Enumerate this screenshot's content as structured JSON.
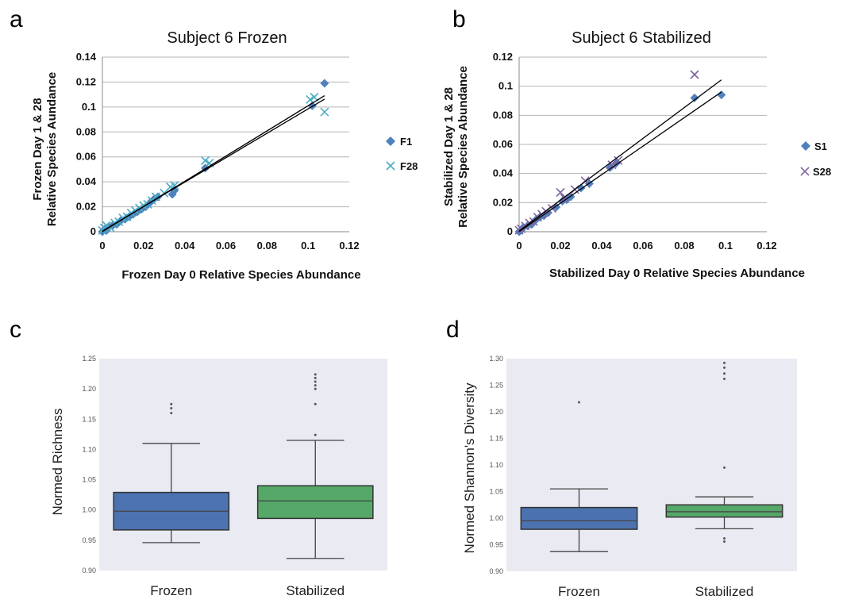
{
  "panels": [
    {
      "letter": "a",
      "title": "Subject 6 Frozen",
      "xlabel": "Frozen Day 0 Relative Species Abundance",
      "ylabel_line1": "Frozen Day 1 & 28",
      "ylabel_line2": "Relative Species Aundance"
    },
    {
      "letter": "b",
      "title": "Subject 6 Stabilized",
      "xlabel": "Stabilized Day 0 Relative Species Abundance",
      "ylabel_line1": "Stabilized Day 1 & 28",
      "ylabel_line2": "Relative Species Abundance"
    },
    {
      "letter": "c",
      "ylabel": "Normed Richness"
    },
    {
      "letter": "d",
      "ylabel": "Normed Shannon's Diversity"
    }
  ],
  "colors": {
    "frozen_scatter": "#4f81bd",
    "frozen_cross": "#4bacc6",
    "stabilized_scatter": "#4f81bd",
    "stabilized_cross": "#8064a2",
    "box_frozen": "#4c72b0",
    "box_stabilized": "#55a868",
    "box_bg": "#eaeaf2"
  },
  "chart_data": [
    {
      "type": "scatter",
      "title": "Subject 6 Frozen",
      "xlabel": "Frozen Day 0 Relative Species Abundance",
      "ylabel": "Frozen Day 1 & 28 Relative Species Aundance",
      "xlim": [
        0,
        0.12
      ],
      "ylim": [
        0,
        0.14
      ],
      "xticks": [
        "0",
        "0.02",
        "0.04",
        "0.06",
        "0.08",
        "0.1",
        "0.12"
      ],
      "yticks": [
        "0",
        "0.02",
        "0.04",
        "0.06",
        "0.08",
        "0.1",
        "0.12",
        "0.14"
      ],
      "grid": "horizontal",
      "legend": "right",
      "series": [
        {
          "name": "F1",
          "marker": "diamond",
          "points": [
            [
              0,
              0
            ],
            [
              0.001,
              0.002
            ],
            [
              0.002,
              0.001
            ],
            [
              0.003,
              0.004
            ],
            [
              0.005,
              0.005
            ],
            [
              0.007,
              0.006
            ],
            [
              0.009,
              0.009
            ],
            [
              0.011,
              0.01
            ],
            [
              0.013,
              0.012
            ],
            [
              0.015,
              0.014
            ],
            [
              0.017,
              0.016
            ],
            [
              0.019,
              0.018
            ],
            [
              0.021,
              0.02
            ],
            [
              0.023,
              0.023
            ],
            [
              0.025,
              0.026
            ],
            [
              0.027,
              0.028
            ],
            [
              0.034,
              0.03
            ],
            [
              0.035,
              0.033
            ],
            [
              0.05,
              0.051
            ],
            [
              0.102,
              0.101
            ],
            [
              0.108,
              0.119
            ]
          ]
        },
        {
          "name": "F28",
          "marker": "cross",
          "points": [
            [
              0,
              0.001
            ],
            [
              0.001,
              0.003
            ],
            [
              0.002,
              0.005
            ],
            [
              0.004,
              0.003
            ],
            [
              0.006,
              0.007
            ],
            [
              0.008,
              0.008
            ],
            [
              0.01,
              0.011
            ],
            [
              0.012,
              0.012
            ],
            [
              0.014,
              0.015
            ],
            [
              0.016,
              0.017
            ],
            [
              0.018,
              0.019
            ],
            [
              0.02,
              0.021
            ],
            [
              0.022,
              0.022
            ],
            [
              0.024,
              0.025
            ],
            [
              0.026,
              0.028
            ],
            [
              0.03,
              0.031
            ],
            [
              0.033,
              0.036
            ],
            [
              0.035,
              0.037
            ],
            [
              0.05,
              0.057
            ],
            [
              0.052,
              0.055
            ],
            [
              0.101,
              0.106
            ],
            [
              0.103,
              0.108
            ],
            [
              0.108,
              0.096
            ]
          ]
        }
      ],
      "trendlines": [
        {
          "name": "F1",
          "slope": 1.01,
          "intercept": 0.0
        },
        {
          "name": "F28",
          "slope": 0.98,
          "intercept": 0.0005
        }
      ]
    },
    {
      "type": "scatter",
      "title": "Subject 6 Stabilized",
      "xlabel": "Stabilized Day 0 Relative Species Abundance",
      "ylabel": "Stabilized Day 1 & 28 Relative Species Abundance",
      "xlim": [
        0,
        0.12
      ],
      "ylim": [
        0,
        0.12
      ],
      "xticks": [
        "0",
        "0.02",
        "0.04",
        "0.06",
        "0.08",
        "0.1",
        "0.12"
      ],
      "yticks": [
        "0",
        "0.02",
        "0.04",
        "0.06",
        "0.08",
        "0.1",
        "0.12"
      ],
      "grid": "horizontal",
      "legend": "right",
      "series": [
        {
          "name": "S1",
          "marker": "diamond",
          "points": [
            [
              0,
              0
            ],
            [
              0.001,
              0.001
            ],
            [
              0.002,
              0.003
            ],
            [
              0.004,
              0.004
            ],
            [
              0.006,
              0.005
            ],
            [
              0.008,
              0.008
            ],
            [
              0.01,
              0.01
            ],
            [
              0.012,
              0.011
            ],
            [
              0.014,
              0.013
            ],
            [
              0.018,
              0.017
            ],
            [
              0.021,
              0.021
            ],
            [
              0.023,
              0.022
            ],
            [
              0.025,
              0.024
            ],
            [
              0.03,
              0.03
            ],
            [
              0.034,
              0.033
            ],
            [
              0.044,
              0.044
            ],
            [
              0.047,
              0.047
            ],
            [
              0.085,
              0.092
            ],
            [
              0.098,
              0.094
            ]
          ]
        },
        {
          "name": "S28",
          "marker": "cross",
          "points": [
            [
              0,
              0.001
            ],
            [
              0.001,
              0.002
            ],
            [
              0.003,
              0.004
            ],
            [
              0.005,
              0.006
            ],
            [
              0.007,
              0.007
            ],
            [
              0.009,
              0.01
            ],
            [
              0.011,
              0.012
            ],
            [
              0.013,
              0.014
            ],
            [
              0.016,
              0.016
            ],
            [
              0.02,
              0.027
            ],
            [
              0.022,
              0.023
            ],
            [
              0.027,
              0.029
            ],
            [
              0.032,
              0.035
            ],
            [
              0.045,
              0.046
            ],
            [
              0.048,
              0.049
            ],
            [
              0.085,
              0.108
            ]
          ]
        }
      ],
      "trendlines": [
        {
          "name": "S1",
          "slope": 0.98,
          "intercept": 0.0
        },
        {
          "name": "S28",
          "slope": 1.06,
          "intercept": 0.0005
        }
      ]
    },
    {
      "type": "box",
      "ylabel": "Normed Richness",
      "ylim": [
        0.9,
        1.25
      ],
      "yticks": [
        "0.90",
        "0.95",
        "1.00",
        "1.05",
        "1.10",
        "1.15",
        "1.20",
        "1.25"
      ],
      "categories": [
        "Frozen",
        "Stabilized"
      ],
      "boxes": [
        {
          "category": "Frozen",
          "whisker_low": 0.946,
          "q1": 0.967,
          "median": 0.998,
          "q3": 1.029,
          "whisker_high": 1.11,
          "outliers": [
            1.16,
            1.168,
            1.175
          ]
        },
        {
          "category": "Stabilized",
          "whisker_low": 0.92,
          "q1": 0.986,
          "median": 1.015,
          "q3": 1.04,
          "whisker_high": 1.115,
          "outliers": [
            1.124,
            1.175,
            1.2,
            1.206,
            1.212,
            1.218,
            1.224
          ]
        }
      ]
    },
    {
      "type": "box",
      "ylabel": "Normed Shannon's Diversity",
      "ylim": [
        0.9,
        1.3
      ],
      "yticks": [
        "0.90",
        "0.95",
        "1.00",
        "1.05",
        "1.10",
        "1.15",
        "1.20",
        "1.25",
        "1.30"
      ],
      "categories": [
        "Frozen",
        "Stabilized"
      ],
      "boxes": [
        {
          "category": "Frozen",
          "whisker_low": 0.937,
          "q1": 0.979,
          "median": 0.995,
          "q3": 1.02,
          "whisker_high": 1.055,
          "outliers": [
            1.218
          ]
        },
        {
          "category": "Stabilized",
          "whisker_low": 0.98,
          "q1": 1.002,
          "median": 1.012,
          "q3": 1.025,
          "whisker_high": 1.04,
          "outliers": [
            0.956,
            0.962,
            1.095,
            1.262,
            1.272,
            1.283,
            1.292
          ]
        }
      ]
    }
  ]
}
